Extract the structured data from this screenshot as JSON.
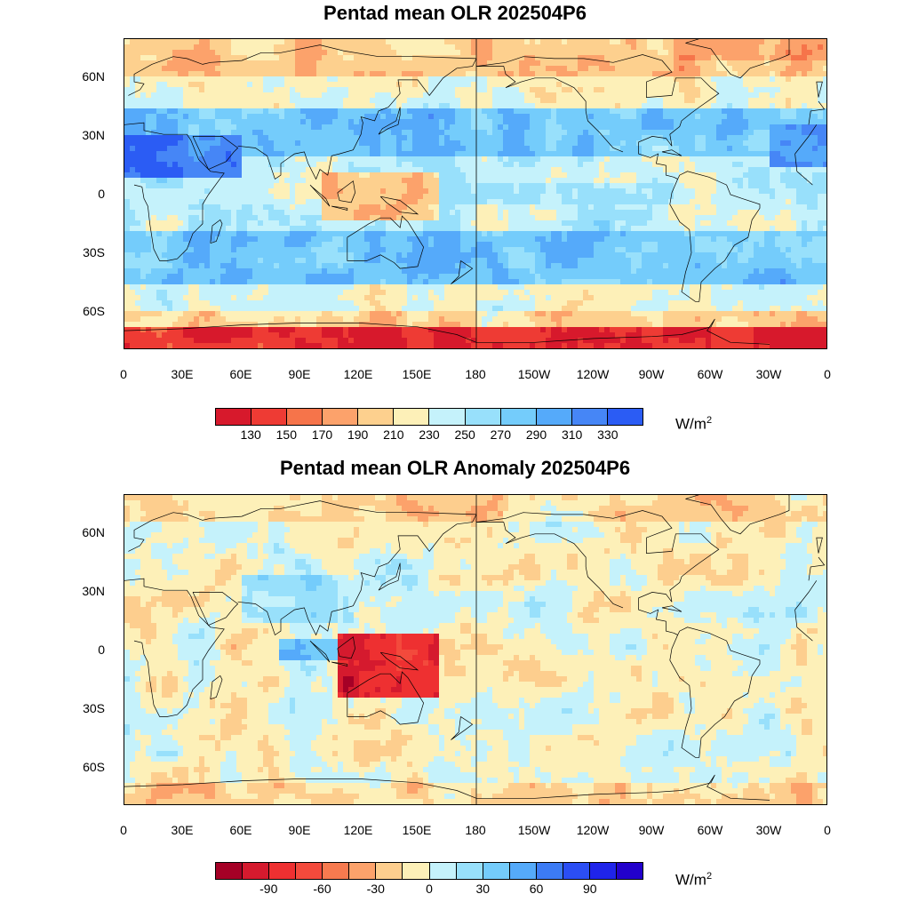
{
  "panels": [
    {
      "title": "Pentad mean OLR 202504P6",
      "units": "W/m",
      "units_sup": "2",
      "colorbar": {
        "colors": [
          "#d7192c",
          "#ee3b34",
          "#f6744a",
          "#fca26b",
          "#fdd08e",
          "#fdf0b8",
          "#c5f2fb",
          "#98e0fb",
          "#74ccfb",
          "#55aafa",
          "#4686f6",
          "#2b5cf4"
        ],
        "labels": [
          "130",
          "150",
          "170",
          "190",
          "210",
          "230",
          "250",
          "270",
          "290",
          "310",
          "330"
        ]
      },
      "map_palette": [
        "#d7192c",
        "#ee3b34",
        "#f6744a",
        "#fca26b",
        "#fdd08e",
        "#fdf0b8",
        "#c5f2fb",
        "#98e0fb",
        "#74ccfb",
        "#55aafa",
        "#4686f6",
        "#2b5cf4"
      ]
    },
    {
      "title": "Pentad mean OLR Anomaly 202504P6",
      "units": "W/m",
      "units_sup": "2",
      "colorbar": {
        "colors": [
          "#a50026",
          "#d51a2e",
          "#ee3031",
          "#f34a3c",
          "#f77a4f",
          "#fca26b",
          "#fdce8e",
          "#fdf0b8",
          "#c5f2fb",
          "#98e0fb",
          "#74ccfb",
          "#55aafa",
          "#3c7bf5",
          "#2b4ef4",
          "#1f24ea",
          "#2200cc"
        ],
        "labels": [
          "",
          "-90",
          "",
          "-60",
          "",
          "-30",
          "",
          "0",
          "",
          "30",
          "",
          "60",
          "",
          "90",
          ""
        ]
      },
      "map_palette": [
        "#a50026",
        "#d51a2e",
        "#ee3031",
        "#f34a3c",
        "#f77a4f",
        "#fca26b",
        "#fdce8e",
        "#fdf0b8",
        "#c5f2fb",
        "#98e0fb",
        "#74ccfb",
        "#55aafa",
        "#3c7bf5"
      ]
    }
  ],
  "x_ticks": [
    "0",
    "30E",
    "60E",
    "90E",
    "120E",
    "150E",
    "180",
    "150W",
    "120W",
    "90W",
    "60W",
    "30W",
    "0"
  ],
  "y_ticks": [
    "60N",
    "30N",
    "0",
    "30S",
    "60S"
  ]
}
